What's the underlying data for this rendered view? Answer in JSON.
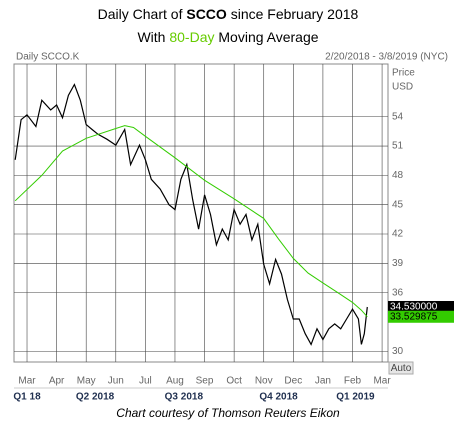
{
  "chart_data": {
    "type": "line",
    "title": [
      "Daily Chart of",
      "SCCO",
      "since February 2018"
    ],
    "subtitle": [
      "With",
      "80-Day",
      "Moving Average"
    ],
    "instrument": "Daily SCCO.K",
    "date_range": "2/20/2018 - 3/8/2019 (NYC)",
    "y_axis_label": [
      "Price",
      "USD"
    ],
    "xlim": [
      -0.44,
      12.2
    ],
    "xticks": [
      {
        "value": 0,
        "label": "Mar"
      },
      {
        "value": 1,
        "label": "Apr"
      },
      {
        "value": 2,
        "label": "May"
      },
      {
        "value": 3,
        "label": "Jun"
      },
      {
        "value": 4,
        "label": "Jul"
      },
      {
        "value": 5,
        "label": "Aug"
      },
      {
        "value": 6,
        "label": "Sep"
      },
      {
        "value": 7,
        "label": "Oct"
      },
      {
        "value": 8,
        "label": "Nov"
      },
      {
        "value": 9,
        "label": "Dec"
      },
      {
        "value": 10,
        "label": "Jan"
      },
      {
        "value": 11,
        "label": "Feb"
      },
      {
        "value": 12,
        "label": "Mar"
      }
    ],
    "quarters": [
      {
        "value": 0,
        "label": "Q1 18"
      },
      {
        "value": 2.3,
        "label": "Q2 2018"
      },
      {
        "value": 5.3,
        "label": "Q3 2018"
      },
      {
        "value": 8.5,
        "label": "Q4 2018"
      },
      {
        "value": 11.1,
        "label": "Q1 2019"
      }
    ],
    "ylim": [
      28.9,
      59.4
    ],
    "yticks": [
      30,
      36,
      39,
      42,
      45,
      48,
      51,
      54
    ],
    "grid": true,
    "series": [
      {
        "color": "#000000",
        "x": [
          -0.4,
          -0.2,
          0,
          0.3,
          0.5,
          0.8,
          1,
          1.2,
          1.4,
          1.6,
          1.8,
          2,
          2.2,
          2.4,
          2.7,
          3,
          3.3,
          3.5,
          3.8,
          4,
          4.2,
          4.5,
          4.8,
          5,
          5.2,
          5.4,
          5.6,
          5.8,
          6,
          6.2,
          6.4,
          6.6,
          6.8,
          7,
          7.2,
          7.4,
          7.6,
          7.8,
          8,
          8.2,
          8.4,
          8.6,
          8.8,
          9,
          9.2,
          9.4,
          9.6,
          9.8,
          10,
          10.2,
          10.4,
          10.6,
          10.8,
          11,
          11.2,
          11.3,
          11.4,
          11.5
        ],
        "values": [
          49.6,
          53.7,
          54.2,
          53,
          55.7,
          54.7,
          55.2,
          53.9,
          56.2,
          57.3,
          55.7,
          53.2,
          52.7,
          52.2,
          51.7,
          51.1,
          52.7,
          49.1,
          51.1,
          49.6,
          47.6,
          46.6,
          45,
          44.5,
          47.6,
          49.1,
          45.5,
          42.5,
          46,
          44,
          40.9,
          42.5,
          41.4,
          44.5,
          43,
          44,
          41.4,
          43,
          38.9,
          36.9,
          39.4,
          37.9,
          35.3,
          33.3,
          33.3,
          31.8,
          30.7,
          32.3,
          31.2,
          32.3,
          32.8,
          32.3,
          33.3,
          34.3,
          33.3,
          30.7,
          31.8,
          34.53
        ],
        "last_value": {
          "value": 34.53,
          "label": "34.530000"
        }
      },
      {
        "color": "#33cc00",
        "x": [
          -0.4,
          0.5,
          1.2,
          2,
          3,
          3.3,
          3.6,
          4,
          5,
          6,
          7,
          8,
          8.5,
          9,
          9.5,
          10,
          10.5,
          11,
          11.3,
          11.5
        ],
        "values": [
          45.4,
          48,
          50.5,
          51.8,
          52.8,
          53.1,
          52.9,
          52,
          49.8,
          47.5,
          45.6,
          43.6,
          41.5,
          39.5,
          38,
          37,
          36,
          35,
          34.2,
          33.529875
        ],
        "last_value": {
          "value": 33.529875,
          "label": "33.529875"
        }
      }
    ],
    "button": "Auto",
    "credit": "Chart courtesy of Thomson Reuters Eikon"
  }
}
